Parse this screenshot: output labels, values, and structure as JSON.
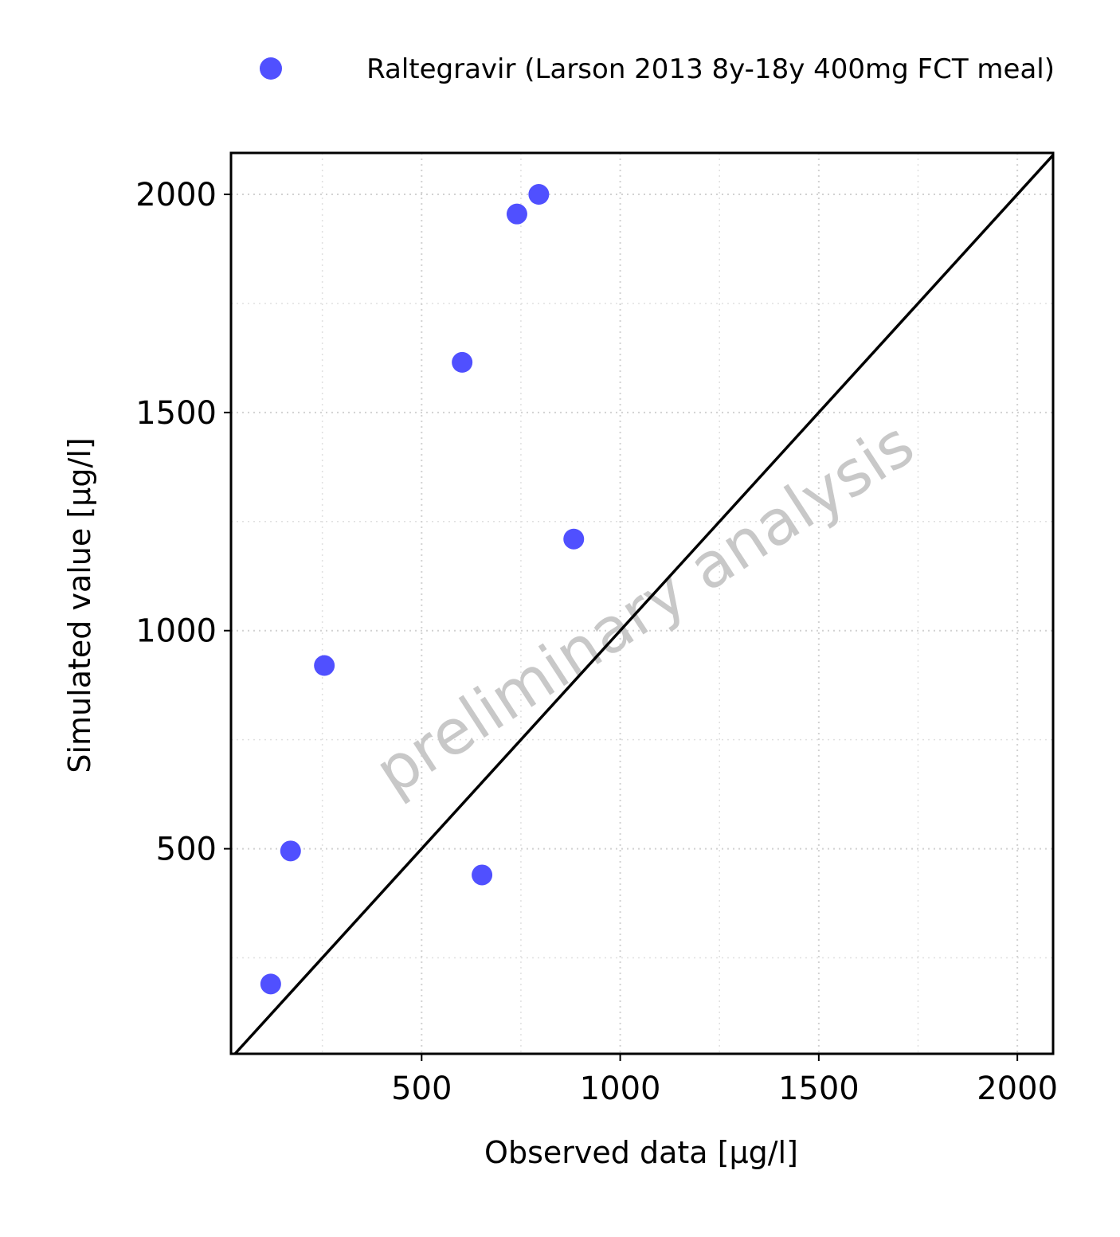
{
  "chart_data": {
    "type": "scatter",
    "xlabel": "Observed data [µg/l]",
    "ylabel": "Simulated value [µg/l]",
    "xlim": [
      20,
      2090
    ],
    "ylim": [
      30,
      2095
    ],
    "x_ticks": [
      500,
      1000,
      1500,
      2000
    ],
    "y_ticks": [
      500,
      1000,
      1500,
      2000
    ],
    "x_minor": [
      250,
      750,
      1250,
      1750
    ],
    "y_minor": [
      250,
      750,
      1250,
      1750
    ],
    "grid": true,
    "identity_line": true,
    "legend_position": "top",
    "watermark": "preliminary analysis",
    "series": [
      {
        "name": "Raltegravir (Larson 2013 8y-18y 400mg FCT meal)",
        "color": "#5050ff",
        "marker": "circle",
        "points": [
          {
            "x": 120,
            "y": 190
          },
          {
            "x": 170,
            "y": 495
          },
          {
            "x": 255,
            "y": 920
          },
          {
            "x": 602,
            "y": 1615
          },
          {
            "x": 652,
            "y": 440
          },
          {
            "x": 740,
            "y": 1955
          },
          {
            "x": 795,
            "y": 2000
          },
          {
            "x": 883,
            "y": 1210
          }
        ]
      }
    ]
  }
}
